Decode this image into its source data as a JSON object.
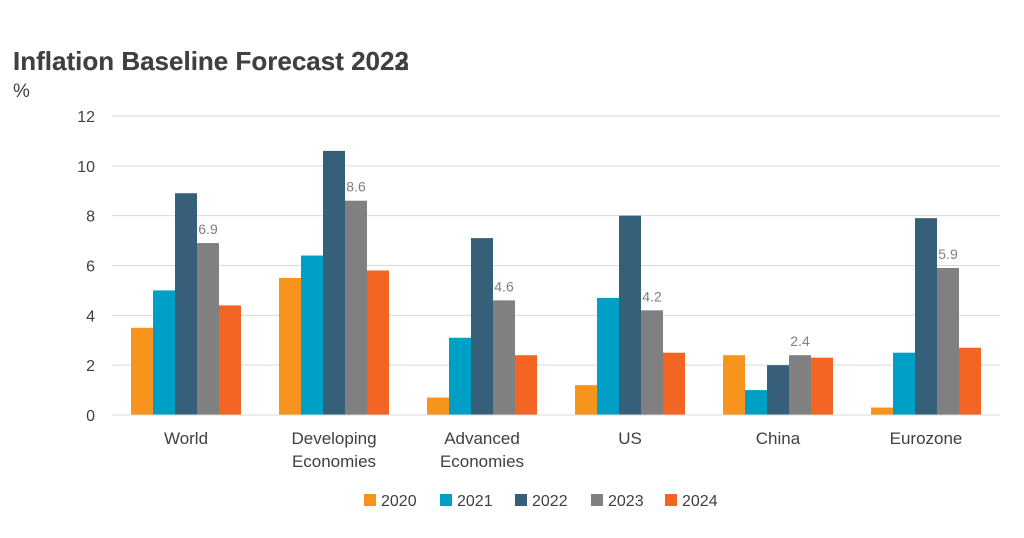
{
  "chart_data": {
    "type": "bar",
    "title_overlap": [
      "Inflation Baseline Forecast 2022",
      "Inflation Baseline Forecast 2023"
    ],
    "unit_label": "%",
    "ylim": [
      0,
      12
    ],
    "yticks": [
      0,
      2,
      4,
      6,
      8,
      10,
      12
    ],
    "grid": true,
    "legend_position": "bottom",
    "categories": [
      [
        "World"
      ],
      [
        "Developing",
        "Economies"
      ],
      [
        "Advanced",
        "Economies"
      ],
      [
        "US"
      ],
      [
        "China"
      ],
      [
        "Eurozone"
      ]
    ],
    "series": [
      {
        "name": "2020",
        "color": "#f7941d",
        "values": [
          3.5,
          5.5,
          0.7,
          1.2,
          2.4,
          0.3
        ]
      },
      {
        "name": "2021",
        "color": "#00a0c6",
        "values": [
          5.0,
          6.4,
          3.1,
          4.7,
          1.0,
          2.5
        ]
      },
      {
        "name": "2022",
        "color": "#36607a",
        "values": [
          8.9,
          10.6,
          7.1,
          8.0,
          2.0,
          7.9
        ]
      },
      {
        "name": "2023",
        "color": "#808080",
        "values": [
          6.9,
          8.6,
          4.6,
          4.2,
          2.4,
          5.9
        ],
        "labeled": true
      },
      {
        "name": "2024",
        "color": "#f26522",
        "values": [
          4.4,
          5.8,
          2.4,
          2.5,
          2.3,
          2.7
        ]
      }
    ],
    "data_labels": [
      "6.9",
      "8.6",
      "4.6",
      "4.2",
      "2.4",
      "5.9"
    ]
  }
}
